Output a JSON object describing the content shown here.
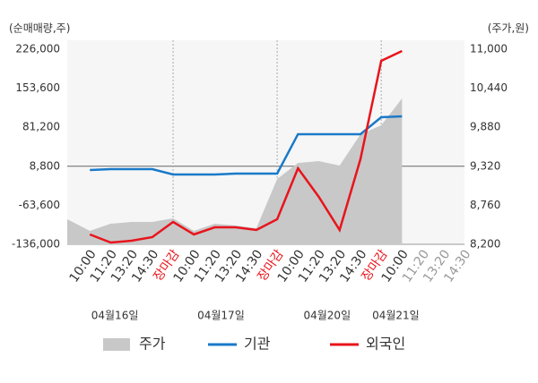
{
  "chart_data": {
    "type": "line",
    "y_label": "(순매매량,주)",
    "y2_label": "(주가,원)",
    "categories": [
      null,
      "10:00",
      "11:20",
      "13:20",
      "14:30",
      "장마감",
      "10:00",
      "11:20",
      "13:20",
      "14:30",
      "장마감",
      "10:00",
      "11:20",
      "13:20",
      "14:30",
      "장마감",
      "10:00",
      "11:20",
      "13:20",
      "14:30"
    ],
    "category_colors": [
      null,
      "#333333",
      "#333333",
      "#333333",
      "#333333",
      "#e8141c",
      "#333333",
      "#333333",
      "#333333",
      "#333333",
      "#e8141c",
      "#333333",
      "#333333",
      "#333333",
      "#333333",
      "#e8141c",
      "#333333",
      "#999999",
      "#999999",
      "#999999"
    ],
    "day_labels": [
      "04월16일",
      "04월17일",
      "04월20일",
      "04월21일"
    ],
    "series": [
      {
        "name": "주가",
        "type": "area",
        "axis": "y2",
        "color": "#c8c8c8",
        "values": [
          8560,
          8393,
          8495,
          8521,
          8521,
          8572,
          8393,
          8495,
          8470,
          8431,
          9137,
          9368,
          9394,
          9330,
          9779,
          9908,
          10293,
          null,
          null,
          null
        ]
      },
      {
        "name": "기관",
        "color": "#1a7ac8",
        "values": [
          null,
          1800,
          3500,
          3500,
          3500,
          -6500,
          -6500,
          -6500,
          -4800,
          -4800,
          -4800,
          68300,
          68300,
          68300,
          68300,
          99800,
          101500,
          null,
          null,
          null
        ]
      },
      {
        "name": "외국인",
        "color": "#e8141c",
        "values": [
          null,
          -117700,
          -132700,
          -129400,
          -122700,
          -94500,
          -117700,
          -104500,
          -104500,
          -109400,
          -89500,
          5100,
          -48000,
          -109400,
          21700,
          204400,
          222700,
          null,
          null,
          null
        ]
      }
    ],
    "ylim": [
      -136000,
      226000
    ],
    "yticks": [
      {
        "value": 226000,
        "label": "226,000"
      },
      {
        "value": 153600,
        "label": "153,600"
      },
      {
        "value": 81200,
        "label": "81,200"
      },
      {
        "value": 8800,
        "label": "8,800"
      },
      {
        "value": -63600,
        "label": "-63,600"
      },
      {
        "value": -136000,
        "label": "-136,000"
      }
    ],
    "y2lim": [
      8200,
      11000
    ],
    "y2ticks": [
      {
        "value": 11000,
        "label": "11,000"
      },
      {
        "value": 10440,
        "label": "10,440"
      },
      {
        "value": 9880,
        "label": "9,880"
      },
      {
        "value": 9320,
        "label": "9,320"
      },
      {
        "value": 8760,
        "label": "8,760"
      },
      {
        "value": 8200,
        "label": "8,200"
      }
    ]
  }
}
